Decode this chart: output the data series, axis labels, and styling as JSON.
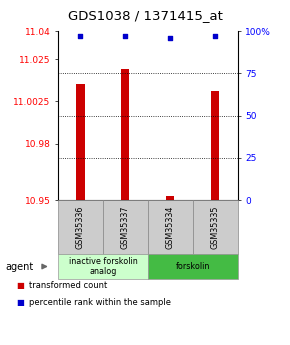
{
  "title": "GDS1038 / 1371415_at",
  "categories": [
    "GSM35336",
    "GSM35337",
    "GSM35334",
    "GSM35335"
  ],
  "bar_values": [
    11.012,
    11.02,
    10.952,
    11.008
  ],
  "percentile_values": [
    97,
    97,
    96,
    97
  ],
  "ylim_left": [
    10.95,
    11.04
  ],
  "ylim_right": [
    0,
    100
  ],
  "yticks_left": [
    10.95,
    10.98,
    11.0025,
    11.025,
    11.04
  ],
  "ytick_labels_left": [
    "10.95",
    "10.98",
    "11.0025",
    "11.025",
    "11.04"
  ],
  "yticks_right": [
    0,
    25,
    50,
    75,
    100
  ],
  "ytick_labels_right": [
    "0",
    "25",
    "50",
    "75",
    "100%"
  ],
  "bar_color": "#cc0000",
  "dot_color": "#0000cc",
  "groups": [
    {
      "label": "inactive forskolin\nanalog",
      "start": 0,
      "end": 2,
      "color": "#ccffcc",
      "border": "#999999"
    },
    {
      "label": "forskolin",
      "start": 2,
      "end": 4,
      "color": "#44bb44",
      "border": "#999999"
    }
  ],
  "sample_box_color": "#cccccc",
  "sample_box_border": "#888888",
  "legend_items": [
    {
      "color": "#cc0000",
      "label": "transformed count"
    },
    {
      "color": "#0000cc",
      "label": "percentile rank within the sample"
    }
  ],
  "agent_label": "agent",
  "title_fontsize": 9.5,
  "tick_fontsize": 6.5,
  "label_fontsize": 7
}
